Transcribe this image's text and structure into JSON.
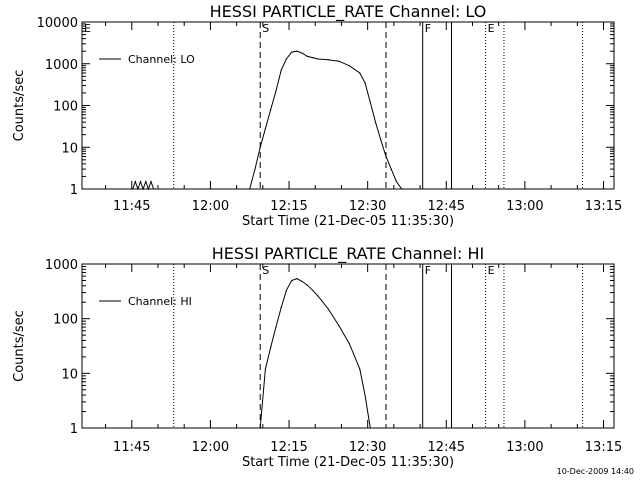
{
  "footer": {
    "timestamp": "10-Dec-2009 14:40"
  },
  "chart_data": [
    {
      "type": "line",
      "title": "HESSI PARTICLE_RATE Channel: LO",
      "xlabel": "Start Time (21-Dec-05 11:35:30)",
      "ylabel": "Counts/sec",
      "x_ticks": [
        "11:45",
        "12:00",
        "12:15",
        "12:30",
        "12:45",
        "13:00",
        "13:15"
      ],
      "xlim": [
        "11:35:30",
        "13:17:00"
      ],
      "y_scale": "log",
      "ylim": [
        1,
        10000
      ],
      "y_ticks": [
        "1",
        "10",
        "100",
        "1000",
        "10000"
      ],
      "series": [
        {
          "name": "Channel: LO",
          "x": [
            "11:35:30",
            "11:45:10",
            "11:45:40",
            "11:46:10",
            "11:46:40",
            "11:47:10",
            "11:47:40",
            "11:48:10",
            "11:48:40",
            "11:49:10",
            "11:49:40",
            "12:07:30",
            "12:08:30",
            "12:09:30",
            "12:10:30",
            "12:11:30",
            "12:12:30",
            "12:13:30",
            "12:14:30",
            "12:15:30",
            "12:16:30",
            "12:17:30",
            "12:18:30",
            "12:19:30",
            "12:20:30",
            "12:22:30",
            "12:24:30",
            "12:26:30",
            "12:28:30",
            "12:29:30",
            "12:30:30",
            "12:31:30",
            "12:32:30",
            "12:33:30",
            "12:34:30",
            "12:35:30",
            "12:36:30"
          ],
          "values": [
            1,
            1,
            1.5,
            1,
            1.5,
            1,
            1.5,
            1,
            1.5,
            1,
            1,
            1,
            3,
            10,
            28,
            80,
            220,
            700,
            1300,
            1900,
            2000,
            1800,
            1500,
            1400,
            1300,
            1250,
            1150,
            900,
            600,
            350,
            120,
            40,
            15,
            6,
            3,
            1.5,
            1
          ]
        }
      ],
      "flags": [
        {
          "label": "E",
          "time": "11:35:30",
          "style": "dashed"
        },
        {
          "label": "S",
          "time": "12:09:30",
          "style": "dashed"
        },
        {
          "label": "F",
          "time": "12:40:30",
          "style": "solid"
        },
        {
          "label": "E",
          "time": "12:52:30",
          "style": "dotted"
        }
      ],
      "grid": false,
      "legend": "top-left"
    },
    {
      "type": "line",
      "title": "HESSI PARTICLE_RATE Channel: HI",
      "xlabel": "Start Time (21-Dec-05 11:35:30)",
      "ylabel": "Counts/sec",
      "x_ticks": [
        "11:45",
        "12:00",
        "12:15",
        "12:30",
        "12:45",
        "13:00",
        "13:15"
      ],
      "xlim": [
        "11:35:30",
        "13:17:00"
      ],
      "y_scale": "log",
      "ylim": [
        1,
        1000
      ],
      "y_ticks": [
        "1",
        "10",
        "100",
        "1000"
      ],
      "series": [
        {
          "name": "Channel: HI",
          "x": [
            "12:09:30",
            "12:10:30",
            "12:11:30",
            "12:12:30",
            "12:13:30",
            "12:14:30",
            "12:15:30",
            "12:16:30",
            "12:17:30",
            "12:18:30",
            "12:19:30",
            "12:20:30",
            "12:22:30",
            "12:24:30",
            "12:26:30",
            "12:28:30",
            "12:29:30",
            "12:30:30"
          ],
          "values": [
            1,
            12,
            30,
            70,
            160,
            330,
            500,
            540,
            480,
            410,
            330,
            260,
            150,
            75,
            35,
            12,
            4,
            1
          ]
        }
      ],
      "flags": [
        {
          "label": "S",
          "time": "12:09:30",
          "style": "dashed"
        },
        {
          "label": "F",
          "time": "12:40:30",
          "style": "solid"
        },
        {
          "label": "E",
          "time": "12:52:30",
          "style": "dotted"
        }
      ],
      "grid": false,
      "legend": "top-left"
    }
  ]
}
